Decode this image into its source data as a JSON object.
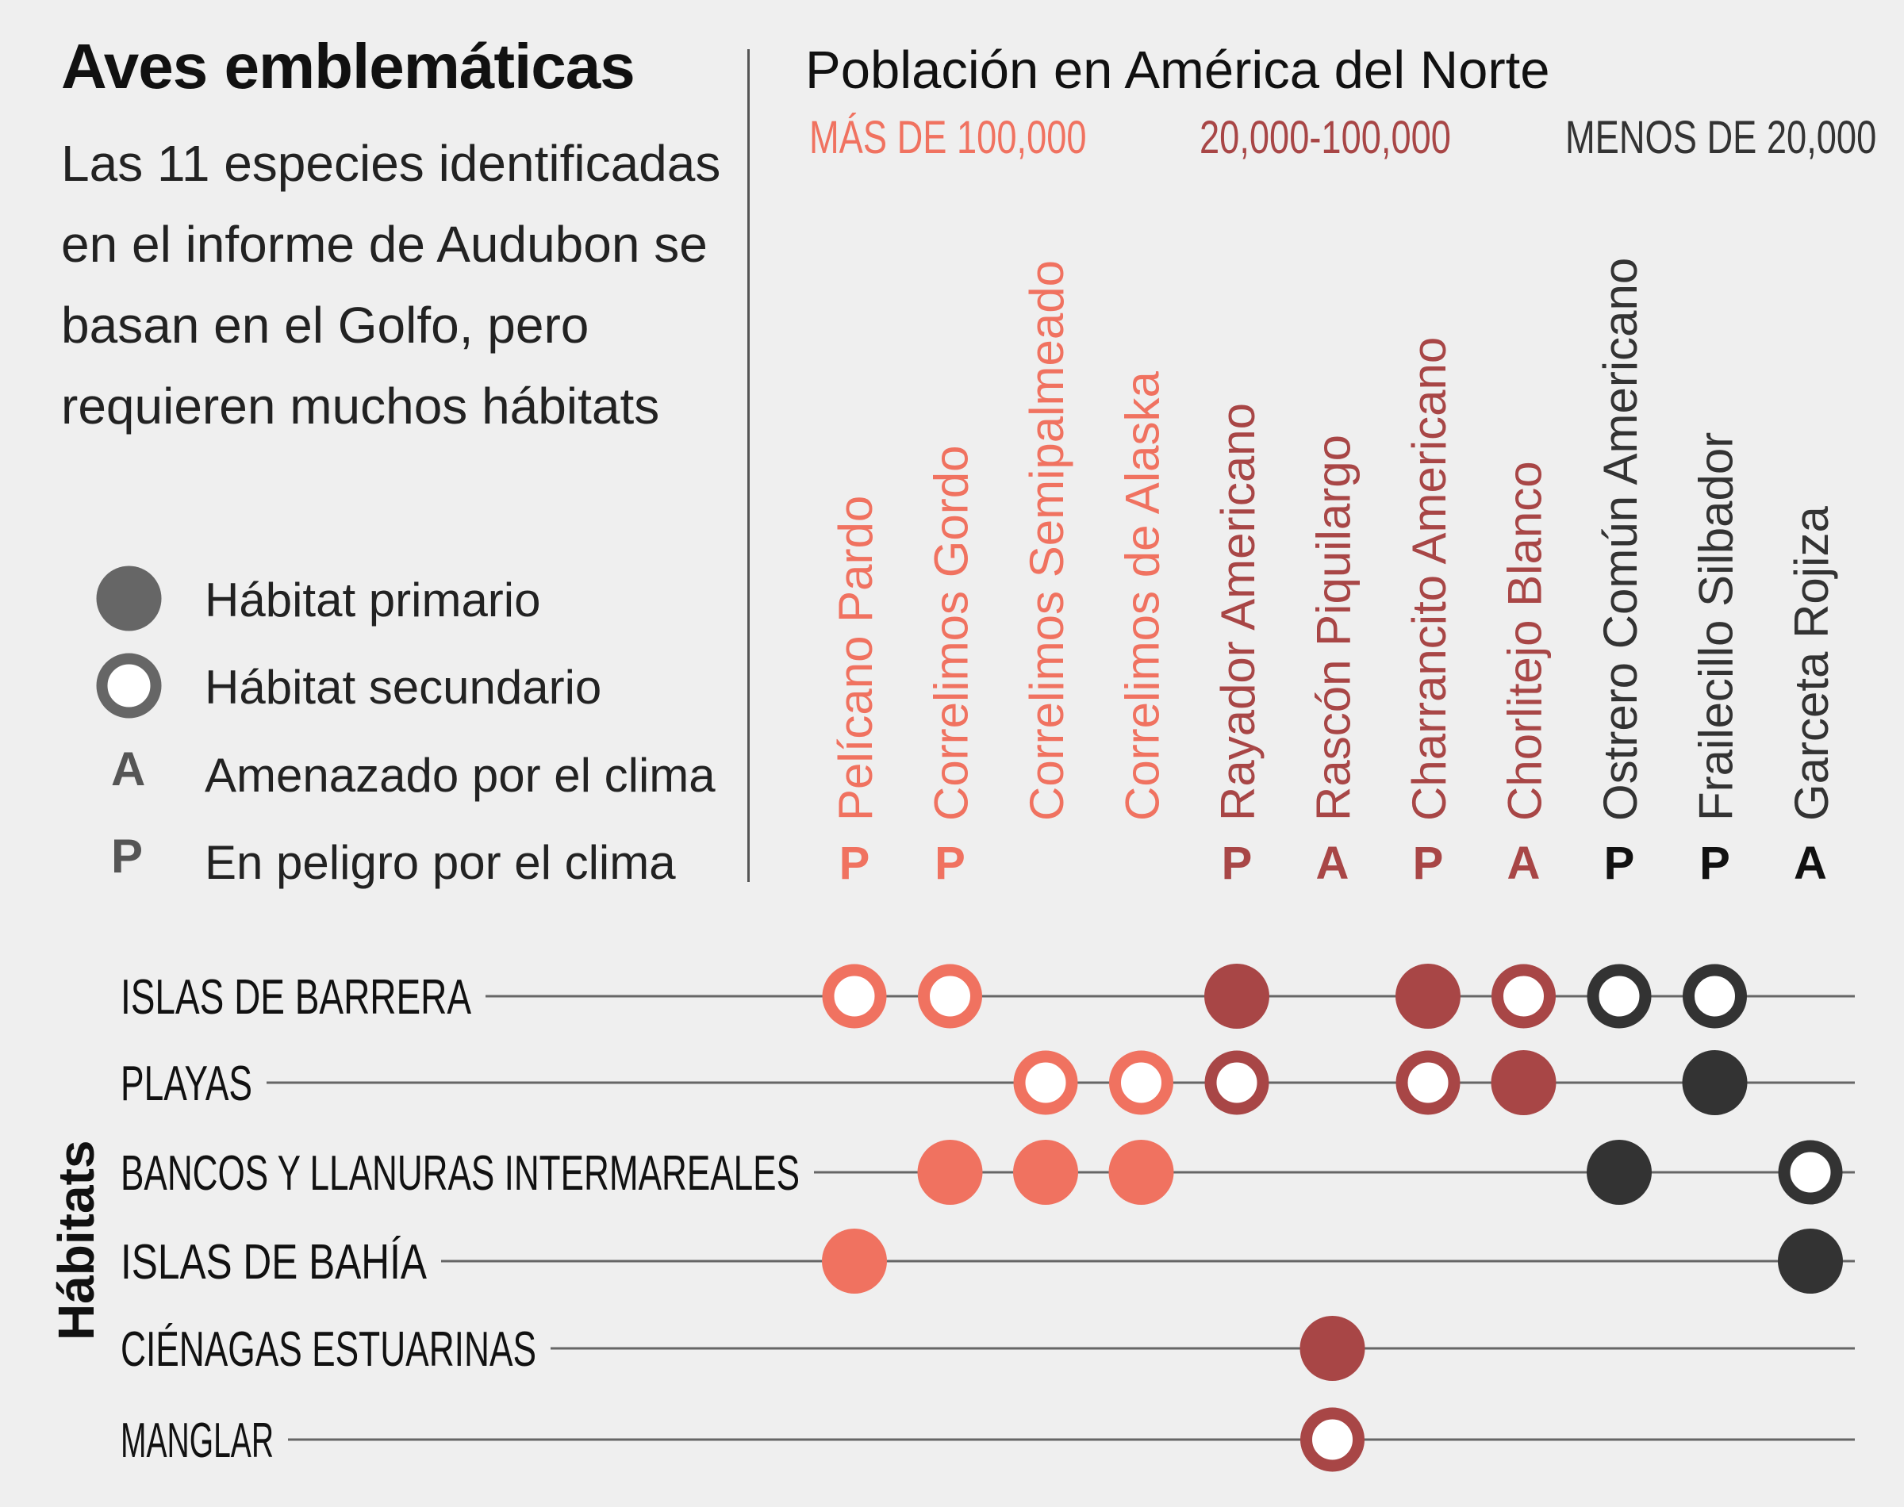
{
  "header": {
    "title": "Aves emblemáticas",
    "subtitle": "Las 11 especies identificadas en el informe de Audubon se basan en el Golfo, pero requieren muchos hábitats"
  },
  "legend": {
    "primary_label": "Hábitat primario",
    "secondary_label": "Hábitat secundario",
    "threatened_letter": "A",
    "threatened_label": "Amenazado por el clima",
    "endangered_letter": "P",
    "endangered_label": "En peligro por el clima"
  },
  "population": {
    "title": "Población en América del Norte",
    "categories": [
      {
        "label": "MÁS DE 100,000",
        "color": "#f07260"
      },
      {
        "label": "20,000-100,000",
        "color": "#a84646"
      },
      {
        "label": "MENOS DE 20,000",
        "color": "#333333"
      }
    ]
  },
  "colors": {
    "high": "#f07260",
    "mid": "#a84646",
    "low": "#333333",
    "legend": "#666666",
    "line": "#666666",
    "background": "#efefef"
  },
  "habitat_axis_label": "Hábitats",
  "chart_data": {
    "type": "matrix",
    "species": [
      {
        "name": "Pelícano Pardo",
        "population": "high",
        "status": "P"
      },
      {
        "name": "Correlimos Gordo",
        "population": "high",
        "status": "P"
      },
      {
        "name": "Correlimos Semipalmeado",
        "population": "high",
        "status": ""
      },
      {
        "name": "Correlimos de Alaska",
        "population": "high",
        "status": ""
      },
      {
        "name": "Rayador Americano",
        "population": "mid",
        "status": "P"
      },
      {
        "name": "Rascón Piquilargo",
        "population": "mid",
        "status": "A"
      },
      {
        "name": "Charrancito Americano",
        "population": "mid",
        "status": "P"
      },
      {
        "name": "Chorlitejo Blanco",
        "population": "mid",
        "status": "A"
      },
      {
        "name": "Ostrero Común Americano",
        "population": "low",
        "status": "P"
      },
      {
        "name": "Frailecillo Silbador",
        "population": "low",
        "status": "P"
      },
      {
        "name": "Garceta Rojiza",
        "population": "low",
        "status": "A"
      }
    ],
    "habitats": [
      {
        "name": "ISLAS DE BARRERA",
        "primary": [
          4,
          6
        ],
        "secondary": [
          0,
          1,
          7,
          8,
          9
        ]
      },
      {
        "name": "PLAYAS",
        "primary": [
          7,
          9
        ],
        "secondary": [
          2,
          3,
          4,
          6
        ]
      },
      {
        "name": "BANCOS Y LLANURAS INTERMAREALES",
        "primary": [
          1,
          2,
          3,
          8
        ],
        "secondary": [
          10
        ]
      },
      {
        "name": "ISLAS DE BAHÍA",
        "primary": [
          0,
          10
        ],
        "secondary": []
      },
      {
        "name": "CIÉNAGAS ESTUARINAS",
        "primary": [
          5
        ],
        "secondary": []
      },
      {
        "name": "MANGLAR",
        "primary": [],
        "secondary": [
          5
        ]
      }
    ]
  }
}
